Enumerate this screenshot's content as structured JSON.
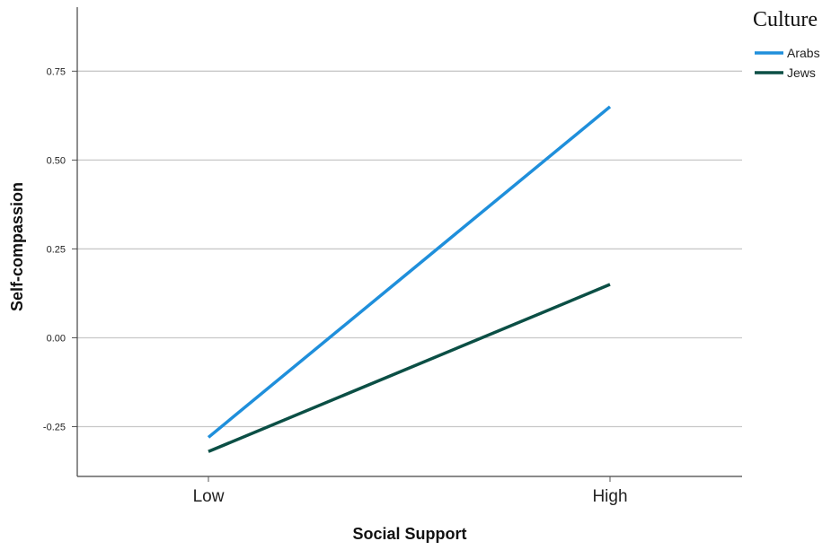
{
  "chart_data": {
    "type": "line",
    "title": "",
    "xlabel": "Social Support",
    "ylabel": "Self-compassion",
    "categories": [
      "Low",
      "High"
    ],
    "y_ticks": [
      "-0.25",
      "0.00",
      "0.25",
      "0.50",
      "0.75"
    ],
    "y_tick_values": [
      -0.25,
      0.0,
      0.25,
      0.5,
      0.75
    ],
    "ylim": [
      -0.39,
      0.93
    ],
    "grid": true,
    "legend_title": "Culture",
    "legend_position": "top-right",
    "series": [
      {
        "name": "Arabs",
        "values": [
          -0.28,
          0.65
        ],
        "color": "#1f8fdb"
      },
      {
        "name": "Jews",
        "values": [
          -0.32,
          0.15
        ],
        "color": "#0b4f45"
      }
    ]
  }
}
